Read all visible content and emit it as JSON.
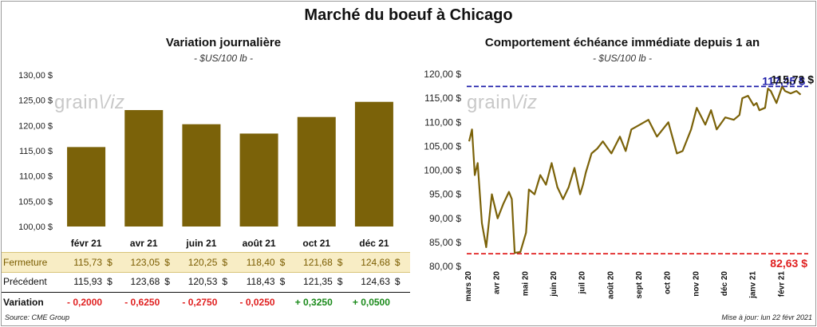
{
  "title": "Marché du boeuf à Chicago",
  "left_chart": {
    "subtitle": "Variation  journalière",
    "unit": "- $US/100 lb -",
    "watermark": "grainwiz"
  },
  "right_chart": {
    "subtitle": "Comportement  échéance immédiate depuis 1 an",
    "unit": "- $US/100 lb -",
    "watermark": "grainwiz",
    "max_label": "117,45 $",
    "last_label": "115,73 $",
    "min_label": "82,63 $"
  },
  "table": {
    "fermeture_label": "Fermeture",
    "precedent_label": "Précédent",
    "variation_label": "Variation",
    "currency": "$",
    "fermeture": [
      "115,73",
      "123,05",
      "120,25",
      "118,40",
      "121,68",
      "124,68"
    ],
    "precedent": [
      "115,93",
      "123,68",
      "120,53",
      "118,43",
      "121,35",
      "124,63"
    ],
    "variation": [
      "- 0,2000",
      "- 0,6250",
      "- 0,2750",
      "- 0,0250",
      "+ 0,3250",
      "+ 0,0500"
    ]
  },
  "footer": {
    "source": "Source: CME Group",
    "updated": "Mise à jour: lun 22 févr 2021"
  },
  "colors": {
    "bar": "#7b6209",
    "line": "#7b6209",
    "max_line": "#1c1ca8",
    "min_line": "#e02020",
    "negative": "#e02020",
    "positive": "#1a8a1a"
  },
  "chart_data": [
    {
      "type": "bar",
      "title": "Variation  journalière",
      "categories": [
        "févr 21",
        "avr 21",
        "juin 21",
        "août 21",
        "oct 21",
        "déc 21"
      ],
      "values": [
        115.73,
        123.05,
        120.25,
        118.4,
        121.68,
        124.68
      ],
      "ylim": [
        100,
        130
      ],
      "yticks": [
        "100,00 $",
        "105,00 $",
        "110,00 $",
        "115,00 $",
        "120,00 $",
        "125,00 $",
        "130,00 $"
      ],
      "ytick_values": [
        100,
        105,
        110,
        115,
        120,
        125,
        130
      ],
      "grid": false
    },
    {
      "type": "line",
      "title": "Comportement  échéance immédiate depuis 1 an",
      "xlabels": [
        "mars 20",
        "avr 20",
        "mai 20",
        "juin 20",
        "juil 20",
        "août 20",
        "sept 20",
        "oct 20",
        "nov 20",
        "déc 20",
        "janv 21",
        "févr 21"
      ],
      "ylim": [
        80,
        120
      ],
      "yticks": [
        "80,00 $",
        "85,00 $",
        "90,00 $",
        "95,00 $",
        "100,00 $",
        "105,00 $",
        "110,00 $",
        "115,00 $",
        "120,00 $"
      ],
      "ytick_values": [
        80,
        85,
        90,
        95,
        100,
        105,
        110,
        115,
        120
      ],
      "max": 117.45,
      "min": 82.63,
      "last": 115.73,
      "series": [
        {
          "x": [
            0.0,
            0.1,
            0.2,
            0.3,
            0.45,
            0.6,
            0.8,
            1.0,
            1.2,
            1.4,
            1.5,
            1.6,
            1.8,
            2.0,
            2.1,
            2.3,
            2.5,
            2.7,
            2.9,
            3.1,
            3.3,
            3.5,
            3.7,
            3.9,
            4.0,
            4.1,
            4.3,
            4.5,
            4.7,
            5.0,
            5.3,
            5.5,
            5.7,
            6.0,
            6.3,
            6.6,
            7.0,
            7.3,
            7.5,
            7.8,
            8.0,
            8.3,
            8.5,
            8.7,
            9.0,
            9.3,
            9.5,
            9.6,
            9.8,
            10.0,
            10.1,
            10.2,
            10.4,
            10.5,
            10.6,
            10.8,
            11.0,
            11.1,
            11.3,
            11.5,
            11.65
          ],
          "y": [
            106.0,
            108.5,
            99.0,
            101.5,
            89.0,
            84.0,
            95.0,
            90.0,
            93.0,
            95.5,
            94.0,
            82.8,
            83.0,
            87.0,
            96.0,
            95.0,
            99.0,
            97.0,
            101.5,
            96.5,
            94.0,
            96.5,
            100.5,
            95.0,
            97.0,
            99.5,
            103.5,
            104.5,
            106.0,
            103.5,
            107.0,
            104.0,
            108.5,
            109.5,
            110.5,
            107.0,
            110.0,
            103.5,
            104.0,
            108.5,
            113.0,
            109.5,
            112.5,
            108.5,
            111.0,
            110.5,
            111.5,
            115.0,
            115.5,
            113.5,
            114.0,
            112.5,
            113.0,
            117.0,
            116.5,
            114.0,
            117.45,
            116.5,
            116.0,
            116.5,
            115.73
          ]
        }
      ]
    }
  ]
}
